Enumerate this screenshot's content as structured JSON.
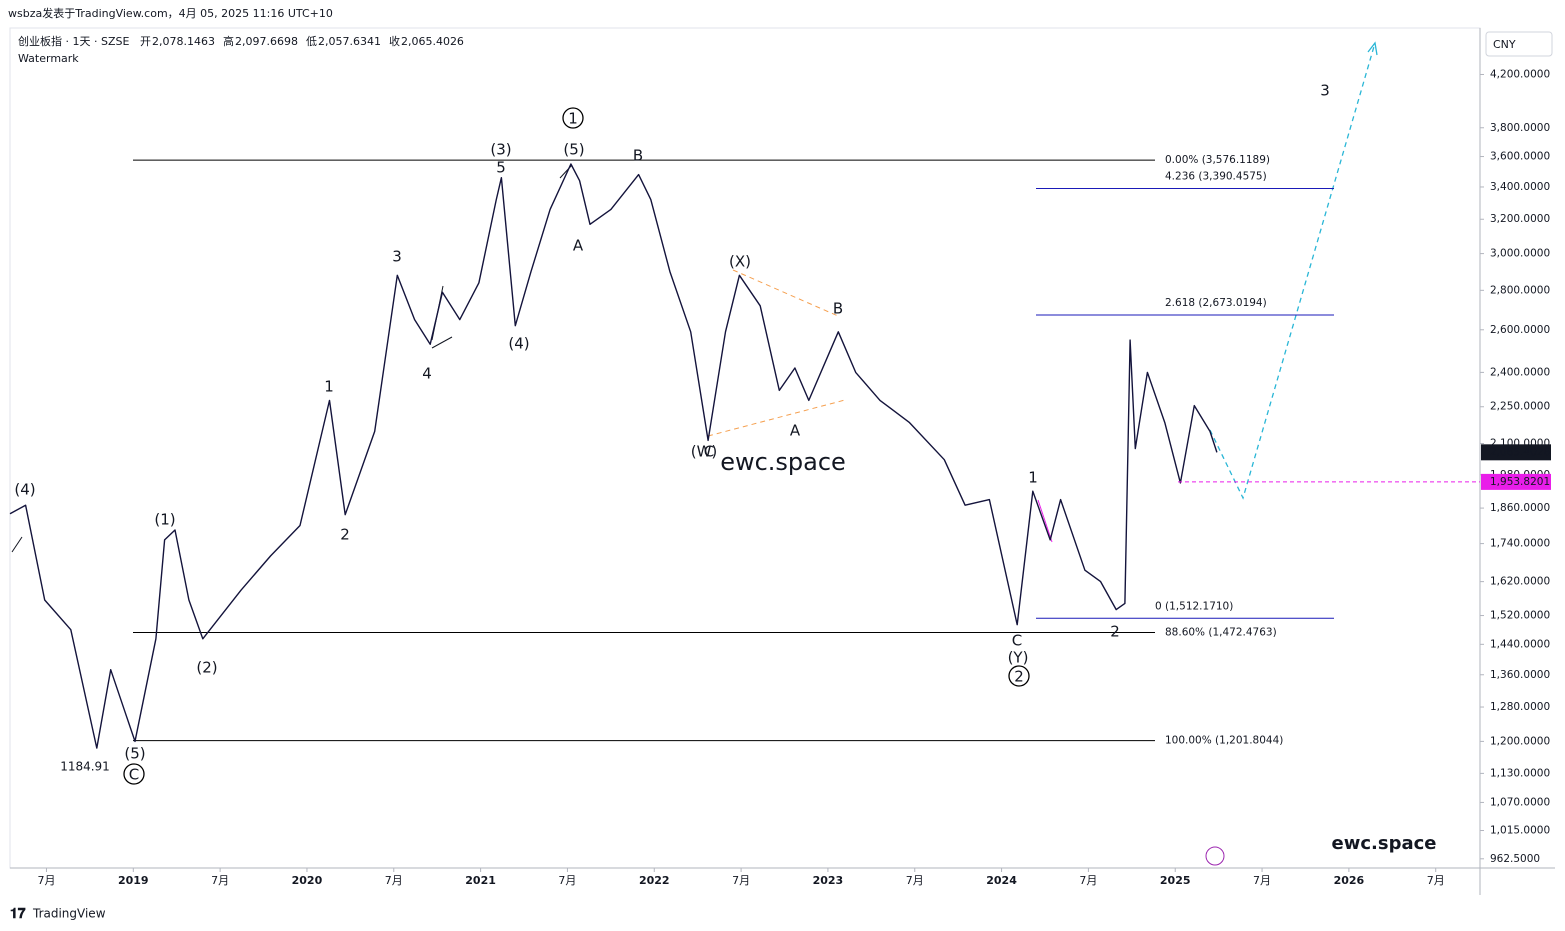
{
  "header": {
    "published": "wsbza发表于TradingView.com，4月 05, 2025 11:16 UTC+10",
    "symbol": "创业板指 · 1天 · SZSE",
    "ohlc": [
      {
        "label": "开",
        "value": "2,078.1463"
      },
      {
        "label": "高",
        "value": "2,097.6698"
      },
      {
        "label": "低",
        "value": "2,057.6341"
      },
      {
        "label": "收",
        "value": "2,065.4026"
      }
    ],
    "watermark": "Watermark",
    "currency": "CNY",
    "footer": "TradingView"
  },
  "chart_data": {
    "type": "line",
    "log_scale": true,
    "grid": false,
    "xlim": [
      2018.29,
      2026.755
    ],
    "xticks": [
      {
        "value": 2018.5,
        "label": "7月"
      },
      2019,
      {
        "value": 2019.5,
        "label": "7月"
      },
      2020,
      {
        "value": 2020.5,
        "label": "7月"
      },
      2021,
      {
        "value": 2021.5,
        "label": "7月"
      },
      2022,
      {
        "value": 2022.5,
        "label": "7月"
      },
      2023,
      {
        "value": 2023.5,
        "label": "7月"
      },
      2024,
      {
        "value": 2024.5,
        "label": "7月"
      },
      2025,
      {
        "value": 2025.5,
        "label": "7月"
      },
      2026,
      {
        "value": 2026.5,
        "label": "7月"
      }
    ],
    "ylim": [
      946,
      4566
    ],
    "yticks": [
      {
        "value": 4200,
        "label": "4,200.0000"
      },
      {
        "value": 3800,
        "label": "3,800.0000"
      },
      {
        "value": 3600,
        "label": "3,600.0000"
      },
      {
        "value": 3400,
        "label": "3,400.0000"
      },
      {
        "value": 3200,
        "label": "3,200.0000"
      },
      {
        "value": 3000,
        "label": "3,000.0000"
      },
      {
        "value": 2800,
        "label": "2,800.0000"
      },
      {
        "value": 2600,
        "label": "2,600.0000"
      },
      {
        "value": 2400,
        "label": "2,400.0000"
      },
      {
        "value": 2250,
        "label": "2,250.0000"
      },
      {
        "value": 2100,
        "label": "2,100.0000"
      },
      {
        "value": 1980,
        "label": "1,980.0000"
      },
      {
        "value": 1860,
        "label": "1,860.0000"
      },
      {
        "value": 1740,
        "label": "1,740.0000"
      },
      {
        "value": 1620,
        "label": "1,620.0000"
      },
      {
        "value": 1520,
        "label": "1,520.0000"
      },
      {
        "value": 1440,
        "label": "1,440.0000"
      },
      {
        "value": 1360,
        "label": "1,360.0000"
      },
      {
        "value": 1280,
        "label": "1,280.0000"
      },
      {
        "value": 1200,
        "label": "1,200.0000"
      },
      {
        "value": 1130,
        "label": "1,130.0000"
      },
      {
        "value": 1070,
        "label": "1,070.0000"
      },
      {
        "value": 1015,
        "label": "1,015.0000"
      },
      {
        "value": 962.5,
        "label": "962.5000"
      }
    ],
    "series": [
      {
        "name": "创业板指",
        "color": "#14143c",
        "x": [
          2018.29,
          2018.38,
          2018.49,
          2018.64,
          2018.79,
          2018.87,
          2019.01,
          2019.13,
          2019.18,
          2019.24,
          2019.32,
          2019.4,
          2019.62,
          2019.79,
          2019.96,
          2020.13,
          2020.22,
          2020.39,
          2020.52,
          2020.62,
          2020.71,
          2020.78,
          2020.88,
          2020.99,
          2021.09,
          2021.12,
          2021.2,
          2021.29,
          2021.4,
          2021.52,
          2021.57,
          2021.63,
          2021.75,
          2021.91,
          2021.98,
          2022.09,
          2022.21,
          2022.31,
          2022.41,
          2022.49,
          2022.61,
          2022.72,
          2022.81,
          2022.89,
          2023.06,
          2023.16,
          2023.3,
          2023.47,
          2023.67,
          2023.79,
          2023.93,
          2024.09,
          2024.18,
          2024.28,
          2024.34,
          2024.48,
          2024.57,
          2024.66,
          2024.71,
          2024.74,
          2024.77,
          2024.84,
          2024.94,
          2025.03,
          2025.11,
          2025.2,
          2025.24
        ],
        "values": [
          1840,
          1870,
          1565,
          1480,
          1185,
          1373,
          1200,
          1455,
          1752,
          1785,
          1565,
          1455,
          1594,
          1700,
          1800,
          2277,
          1837,
          2148,
          2880,
          2650,
          2530,
          2790,
          2650,
          2840,
          3318,
          3460,
          2620,
          2900,
          3260,
          3550,
          3440,
          3170,
          3260,
          3480,
          3320,
          2900,
          2590,
          2112,
          2590,
          2880,
          2720,
          2320,
          2420,
          2277,
          2590,
          2400,
          2277,
          2184,
          2037,
          1870,
          1890,
          1494,
          1920,
          1752,
          1890,
          1655,
          1620,
          1537,
          1555,
          2550,
          2080,
          2400,
          2184,
          1950,
          2255,
          2148,
          2065
        ]
      }
    ],
    "last_price": {
      "value": 2065.4026,
      "label": "2,065.4026",
      "color": "#131722"
    },
    "price_line": {
      "value": 1953.8201,
      "label": "1,953.8201",
      "color": "#e91ee9"
    },
    "levels": [
      {
        "label": "0.00% (3,576.1189)",
        "value": 3576.1189,
        "color": "#000000"
      },
      {
        "label": "88.60% (1,472.4763)",
        "value": 1472.4763,
        "color": "#000000"
      },
      {
        "label": "100.00% (1,201.8044)",
        "value": 1201.8044,
        "color": "#000000"
      },
      {
        "label": "4.236 (3,390.4575)",
        "value": 3390.4575,
        "color": "#1a1ab8"
      },
      {
        "label": "2.618 (2,673.0194)",
        "value": 2673.0194,
        "color": "#1a1ab8"
      },
      {
        "label": "0 (1,512.1710)",
        "value": 1512.171,
        "color": "#1a1ab8"
      }
    ],
    "annotations": [
      {
        "text": "(4)",
        "color": "#e91ee9"
      },
      {
        "text": "(5)",
        "color": "#e91ee9"
      },
      {
        "text": "(1)",
        "color": "#e91ee9"
      },
      {
        "text": "(2)",
        "color": "#e91ee9"
      },
      {
        "text": "(3)",
        "color": "#e91ee9"
      },
      {
        "text": "(5)",
        "color": "#e91ee9"
      },
      {
        "text": "(4)",
        "color": "#e91ee9"
      },
      {
        "text": "(X)",
        "color": "#e91ee9"
      },
      {
        "text": "(W)",
        "color": "#e91ee9"
      },
      {
        "text": "(Y)",
        "color": "#e91ee9"
      },
      {
        "text": "5",
        "color": "#1010a8"
      },
      {
        "text": "3",
        "color": "#1010a8"
      },
      {
        "text": "4",
        "color": "#1010a8"
      },
      {
        "text": "1",
        "color": "#1010a8"
      },
      {
        "text": "2",
        "color": "#1010a8"
      },
      {
        "text": "B",
        "color": "#1010a8"
      },
      {
        "text": "A",
        "color": "#1010a8"
      },
      {
        "text": "B",
        "color": "#1010a8"
      },
      {
        "text": "A",
        "color": "#1010a8"
      },
      {
        "text": "C",
        "color": "#1010a8"
      },
      {
        "text": "C",
        "color": "#1010a8"
      },
      {
        "text": "1",
        "color": "#1010a8"
      },
      {
        "text": "2",
        "color": "#1010a8"
      },
      {
        "text": "3",
        "color": "#1010a8"
      },
      {
        "text": "1",
        "color": "#000000",
        "circled": true
      },
      {
        "text": "2",
        "color": "#000000",
        "circled": true
      },
      {
        "text": "C",
        "color": "#000000",
        "circled": true
      },
      {
        "text": "1184.91",
        "color": "#131722"
      },
      {
        "text": "ewc.space",
        "color": "#b8b8c0"
      },
      {
        "text": "ewc.space",
        "color": "#1a1a8a"
      }
    ]
  }
}
